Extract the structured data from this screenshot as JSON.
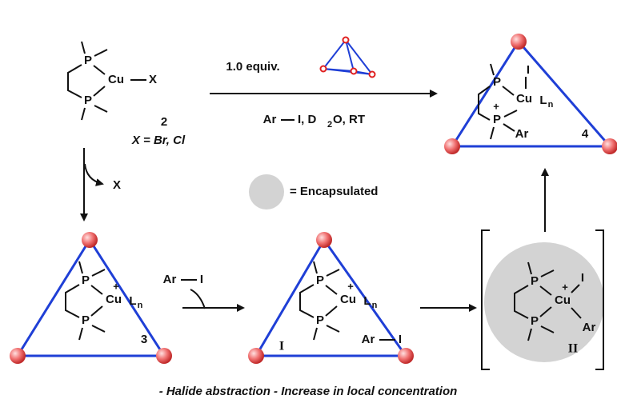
{
  "atoms": {
    "p": "P",
    "cu": "Cu",
    "x": "X",
    "l": "L",
    "n": "n",
    "plus": "+",
    "iodine": "I",
    "ar": "Ar"
  },
  "reagent": "1.0 equiv.",
  "conditions": {
    "ar": "Ar",
    "rest": "I, D",
    "sub": "2",
    "tail": "O, RT"
  },
  "compounds": {
    "c2": "2",
    "c3": "3",
    "c4": "4",
    "ci": "I",
    "cii": "II"
  },
  "halide": "X = Br, Cl",
  "released": "X",
  "legend": "= Encapsulated",
  "caption": "- Halide abstraction - Increase in local concentration"
}
